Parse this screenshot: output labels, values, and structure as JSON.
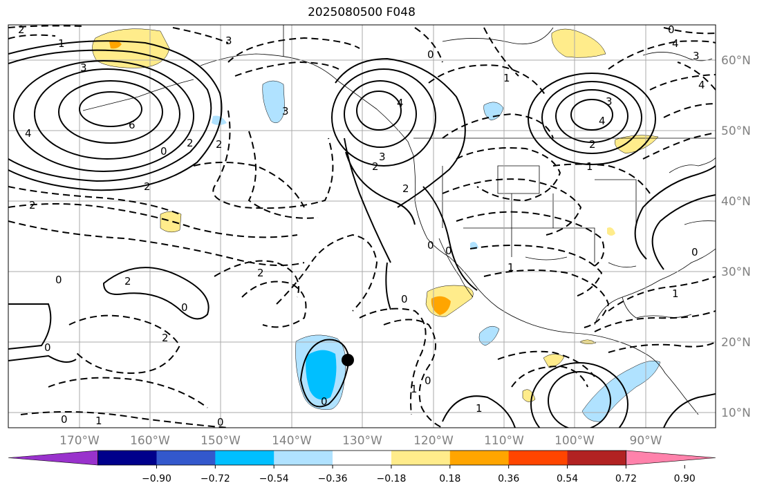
{
  "title": "2025080500 F048",
  "lon_labels": [
    "170°W",
    "160°W",
    "150°W",
    "140°W",
    "130°W",
    "120°W",
    "110°W",
    "100°W",
    "90°W"
  ],
  "lat_labels": [
    "60°N",
    "50°N",
    "40°N",
    "30°N",
    "20°N",
    "10°N"
  ],
  "colorbar": {
    "colors": [
      "#9932cc",
      "#00008b",
      "#3358cc",
      "#00bfff",
      "#b0e2ff",
      "#ffffff",
      "#ffec8b",
      "#ffa500",
      "#ff4500",
      "#b22222",
      "#ff82ab"
    ],
    "ticks": [
      "−0.90",
      "−0.72",
      "−0.54",
      "−0.36",
      "−0.18",
      "0.18",
      "0.36",
      "0.54",
      "0.72",
      "0.90"
    ]
  },
  "contour_labels": [
    "2",
    "1",
    "3",
    "3",
    "6",
    "4",
    "0",
    "2",
    "2",
    "3",
    "2",
    "4",
    "3",
    "2",
    "3",
    "1",
    "0",
    "2",
    "4",
    "2",
    "1",
    "2",
    "2",
    "0",
    "0",
    "0",
    "2",
    "0",
    "0",
    "2",
    "1",
    "0",
    "0",
    "1",
    "0",
    "0",
    "0",
    "1",
    "1",
    "0",
    "0",
    "4",
    "4",
    "3",
    "1"
  ],
  "marker": "typhoon-center-dot"
}
